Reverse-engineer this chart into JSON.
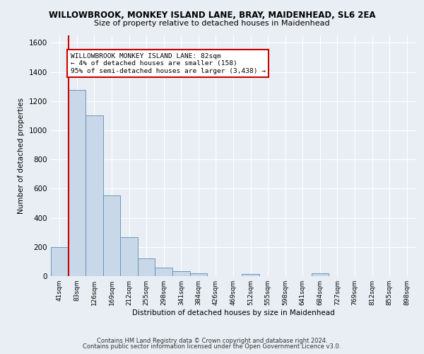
{
  "title": "WILLOWBROOK, MONKEY ISLAND LANE, BRAY, MAIDENHEAD, SL6 2EA",
  "subtitle": "Size of property relative to detached houses in Maidenhead",
  "xlabel": "Distribution of detached houses by size in Maidenhead",
  "ylabel": "Number of detached properties",
  "categories": [
    "41sqm",
    "83sqm",
    "126sqm",
    "169sqm",
    "212sqm",
    "255sqm",
    "298sqm",
    "341sqm",
    "384sqm",
    "426sqm",
    "469sqm",
    "512sqm",
    "555sqm",
    "598sqm",
    "641sqm",
    "684sqm",
    "727sqm",
    "769sqm",
    "812sqm",
    "855sqm",
    "898sqm"
  ],
  "values": [
    200,
    1275,
    1100,
    555,
    265,
    120,
    58,
    33,
    20,
    0,
    0,
    15,
    0,
    0,
    0,
    18,
    0,
    0,
    0,
    0,
    0
  ],
  "bar_color": "#c8d8e8",
  "bar_edge_color": "#5b8db0",
  "vline_color": "#cc0000",
  "annotation_text": "WILLOWBROOK MONKEY ISLAND LANE: 82sqm\n← 4% of detached houses are smaller (158)\n95% of semi-detached houses are larger (3,438) →",
  "annotation_box_color": "#ffffff",
  "annotation_box_edge": "#cc0000",
  "ylim": [
    0,
    1650
  ],
  "yticks": [
    0,
    200,
    400,
    600,
    800,
    1000,
    1200,
    1400,
    1600
  ],
  "bg_color": "#e8eef4",
  "plot_bg_color": "#e8eef4",
  "footer1": "Contains HM Land Registry data © Crown copyright and database right 2024.",
  "footer2": "Contains public sector information licensed under the Open Government Licence v3.0."
}
